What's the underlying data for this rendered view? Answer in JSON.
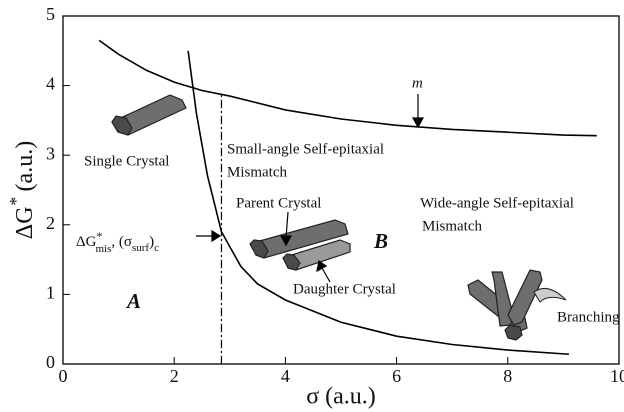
{
  "chart_data": {
    "type": "line",
    "xlabel": "σ (a.u.)",
    "ylabel_parts": [
      "ΔG",
      "*",
      " (a.u.)"
    ],
    "xlim": [
      0,
      10
    ],
    "xticks": [
      0,
      2,
      4,
      6,
      8,
      10
    ],
    "ylim": [
      0,
      5
    ],
    "yticks": [
      0,
      1,
      2,
      3,
      4,
      5
    ],
    "series": [
      {
        "name": "m",
        "color": "#000000",
        "x": [
          0.65,
          1,
          1.5,
          2,
          2.5,
          3,
          4,
          5,
          6,
          7,
          8,
          9,
          9.6
        ],
        "values": [
          4.65,
          4.45,
          4.22,
          4.05,
          3.93,
          3.85,
          3.65,
          3.52,
          3.43,
          3.37,
          3.33,
          3.29,
          3.28
        ]
      },
      {
        "color": "#000000",
        "x": [
          2.25,
          2.4,
          2.6,
          2.85,
          3.2,
          3.5,
          4,
          5,
          6,
          7,
          8,
          9.1
        ],
        "values": [
          4.5,
          3.6,
          2.7,
          1.9,
          1.4,
          1.15,
          0.92,
          0.6,
          0.4,
          0.28,
          0.2,
          0.14
        ]
      }
    ],
    "critical_x": 2.85,
    "critical_label_parts": [
      "ΔG",
      "*",
      "mis",
      ", (σ",
      "surf",
      ")",
      "c"
    ],
    "annotations": [
      "Small-angle Self-epitaxial",
      "Mismatch",
      "Single Crystal",
      "Parent Crystal",
      "Wide-angle Self-epitaxial",
      "Mismatch",
      "B",
      "Daughter Crystal",
      "A",
      "Branching"
    ]
  }
}
